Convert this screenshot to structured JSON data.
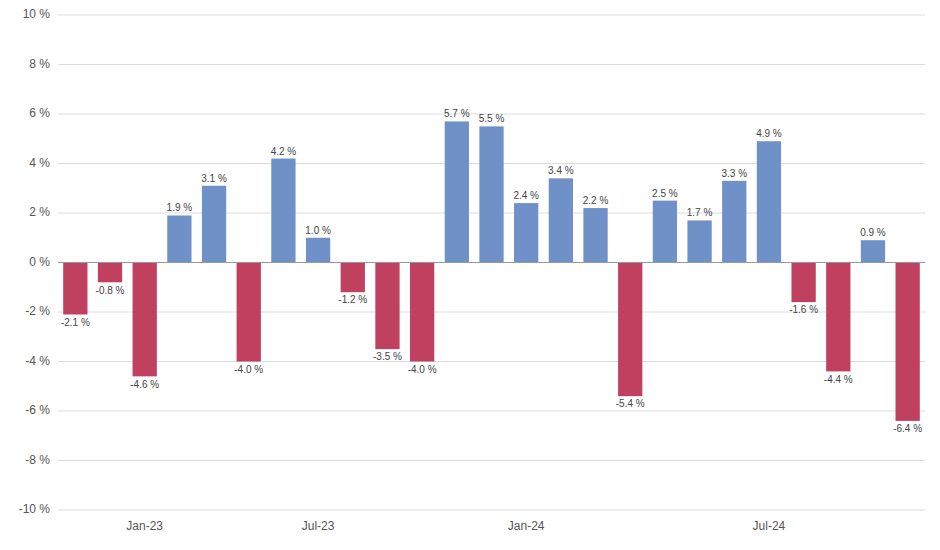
{
  "chart_data": {
    "type": "bar",
    "categories": [
      null,
      null,
      "Jan-23",
      null,
      null,
      null,
      null,
      "Jul-23",
      null,
      null,
      null,
      null,
      null,
      "Jan-24",
      null,
      null,
      null,
      null,
      null,
      null,
      "Jul-24",
      null,
      null,
      null,
      null
    ],
    "values": [
      -2.1,
      -0.8,
      -4.6,
      1.9,
      3.1,
      -4.0,
      4.2,
      1.0,
      -1.2,
      -3.5,
      -4.0,
      5.7,
      5.5,
      2.4,
      3.4,
      2.2,
      -5.4,
      2.5,
      1.7,
      3.3,
      4.9,
      -1.6,
      -4.4,
      0.9,
      -6.4
    ],
    "value_labels": [
      "-2.1 %",
      "-0.8 %",
      "-4.6 %",
      "1.9 %",
      "3.1 %",
      "-4.0 %",
      "4.2 %",
      "1.0 %",
      "-1.2 %",
      "-3.5 %",
      "-4.0 %",
      "5.7 %",
      "5.5 %",
      "2.4 %",
      "3.4 %",
      "2.2 %",
      "-5.4 %",
      "2.5 %",
      "1.7 %",
      "3.3 %",
      "4.9 %",
      "-1.6 %",
      "-4.4 %",
      "0.9 %",
      "-6.4 %"
    ],
    "colors": [
      "#c04060",
      "#c04060",
      "#c04060",
      "#7090c8",
      "#7090c8",
      "#c04060",
      "#7090c8",
      "#7090c8",
      "#c04060",
      "#c04060",
      "#c04060",
      "#7090c8",
      "#7090c8",
      "#7090c8",
      "#7090c8",
      "#7090c8",
      "#c04060",
      "#7090c8",
      "#7090c8",
      "#7090c8",
      "#7090c8",
      "#c04060",
      "#c04060",
      "#7090c8",
      "#c04060"
    ],
    "ylim": [
      -10,
      10
    ],
    "yticks": [
      {
        "value": -10,
        "label": "-10 %"
      },
      {
        "value": -8,
        "label": "-8 %"
      },
      {
        "value": -6,
        "label": "-6 %"
      },
      {
        "value": -4,
        "label": "-4 %"
      },
      {
        "value": -2,
        "label": "-2 %"
      },
      {
        "value": 0,
        "label": "0 %"
      },
      {
        "value": 2,
        "label": "2 %"
      },
      {
        "value": 4,
        "label": "4 %"
      },
      {
        "value": 6,
        "label": "6 %"
      },
      {
        "value": 8,
        "label": "8 %"
      },
      {
        "value": 10,
        "label": "10 %"
      }
    ],
    "grid": true,
    "data_labels": true
  }
}
